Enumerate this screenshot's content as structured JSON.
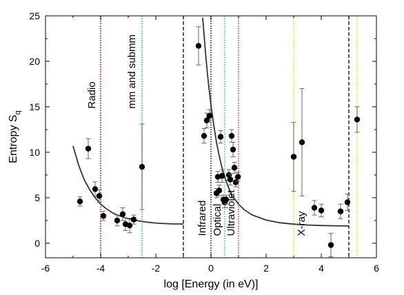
{
  "chart_data": {
    "type": "scatter",
    "title": "",
    "xlabel": "log [Energy (in eV)]",
    "ylabel_main": "Entropy S",
    "ylabel_sub": "q",
    "xlim": [
      -6,
      6
    ],
    "ylim": [
      -1.6,
      25
    ],
    "x_ticks": [
      -6,
      -4,
      -2,
      0,
      2,
      4,
      6
    ],
    "x_tick_labels": [
      "-6",
      "-4",
      "-2",
      "0",
      "2",
      "4",
      "6"
    ],
    "y_ticks": [
      0,
      5,
      10,
      15,
      20,
      25
    ],
    "y_tick_labels": [
      "0",
      "5",
      "10",
      "15",
      "20",
      "25"
    ],
    "grid": false,
    "legend": "none",
    "vertical_lines": [
      {
        "x": -4.0,
        "color": "#d40000",
        "style": "dotted"
      },
      {
        "x": -2.5,
        "color": "#22cc22",
        "style": "dotted"
      },
      {
        "x": -1.0,
        "color": "#000000",
        "style": "dashed"
      },
      {
        "x": 0.0,
        "color": "#0000cc",
        "style": "dotted"
      },
      {
        "x": 0.5,
        "color": "#22cccc",
        "style": "dotted"
      },
      {
        "x": 1.0,
        "color": "#cc22cc",
        "style": "dotted"
      },
      {
        "x": 3.0,
        "color": "#e6e600",
        "style": "dotted"
      },
      {
        "x": 5.0,
        "color": "#000000",
        "style": "dashed"
      },
      {
        "x": 5.3,
        "color": "#e6e600",
        "style": "dotted"
      }
    ],
    "region_labels": [
      {
        "text": "Radio",
        "x": -4.2,
        "y": 14.8
      },
      {
        "text": "mm and submm",
        "x": -2.75,
        "y": 14.8
      },
      {
        "text": "Infrared",
        "x": -0.2,
        "y": 0.8
      },
      {
        "text": "Optical",
        "x": 0.35,
        "y": 0.8
      },
      {
        "text": "Ultraviolet",
        "x": 0.85,
        "y": 0.8
      },
      {
        "text": "X-ray",
        "x": 3.4,
        "y": 0.8
      }
    ],
    "fit_curves": [
      {
        "x": [
          -5.0,
          -4.8,
          -4.6,
          -4.4,
          -4.2,
          -4.0,
          -3.8,
          -3.6,
          -3.4,
          -3.2,
          -3.0,
          -2.8,
          -2.6,
          -2.4,
          -2.2,
          -2.0,
          -1.8,
          -1.6,
          -1.4,
          -1.2,
          -1.0
        ],
        "y": [
          10.7,
          8.6,
          7.0,
          5.9,
          5.0,
          4.3,
          3.8,
          3.4,
          3.1,
          2.9,
          2.7,
          2.55,
          2.45,
          2.35,
          2.28,
          2.22,
          2.18,
          2.15,
          2.13,
          2.12,
          2.11
        ]
      },
      {
        "x": [
          -0.3,
          -0.2,
          -0.1,
          0.0,
          0.1,
          0.2,
          0.3,
          0.4,
          0.5,
          0.6,
          0.7,
          0.8,
          1.0,
          1.2,
          1.5,
          2.0,
          2.5,
          3.0,
          3.5,
          4.0,
          4.5,
          5.0
        ],
        "y": [
          24.8,
          21.0,
          17.8,
          15.2,
          13.0,
          11.1,
          9.6,
          8.3,
          7.3,
          6.4,
          5.7,
          5.1,
          4.3,
          3.7,
          3.1,
          2.55,
          2.25,
          2.1,
          2.0,
          1.95,
          1.92,
          1.9
        ]
      }
    ],
    "points": [
      {
        "x": -4.75,
        "y": 4.6,
        "err": 0.5
      },
      {
        "x": -4.45,
        "y": 10.4,
        "err": 1.1
      },
      {
        "x": -4.2,
        "y": 5.95,
        "err": 0.8
      },
      {
        "x": -4.05,
        "y": 5.2,
        "err": 0.7
      },
      {
        "x": -3.9,
        "y": 3.0,
        "err": 0.5
      },
      {
        "x": -3.4,
        "y": 2.5,
        "err": 0.6
      },
      {
        "x": -3.2,
        "y": 3.2,
        "err": 0.7
      },
      {
        "x": -3.1,
        "y": 2.1,
        "err": 0.7
      },
      {
        "x": -2.95,
        "y": 1.95,
        "err": 0.8
      },
      {
        "x": -2.8,
        "y": 2.6,
        "err": 0.5
      },
      {
        "x": -2.5,
        "y": 8.4,
        "err": 4.7
      },
      {
        "x": -0.45,
        "y": 21.7,
        "err": 2.1
      },
      {
        "x": -0.25,
        "y": 11.8,
        "err": 0.8
      },
      {
        "x": -0.15,
        "y": 13.5,
        "err": 0.8
      },
      {
        "x": -0.05,
        "y": 14.0,
        "err": 0.7
      },
      {
        "x": 0.2,
        "y": 5.5,
        "err": 0.5
      },
      {
        "x": 0.25,
        "y": 7.3,
        "err": 0.6
      },
      {
        "x": 0.3,
        "y": 5.8,
        "err": 0.6
      },
      {
        "x": 0.35,
        "y": 11.7,
        "err": 0.7
      },
      {
        "x": 0.4,
        "y": 7.4,
        "err": 0.7
      },
      {
        "x": 0.45,
        "y": 4.8,
        "err": 0.5
      },
      {
        "x": 0.5,
        "y": 4.5,
        "err": 0.6
      },
      {
        "x": 0.55,
        "y": 4.8,
        "err": 0.5
      },
      {
        "x": 0.65,
        "y": 7.5,
        "err": 0.6
      },
      {
        "x": 0.7,
        "y": 7.0,
        "err": 0.6
      },
      {
        "x": 0.75,
        "y": 11.8,
        "err": 0.7
      },
      {
        "x": 0.8,
        "y": 10.3,
        "err": 0.8
      },
      {
        "x": 0.85,
        "y": 8.3,
        "err": 0.6
      },
      {
        "x": 0.9,
        "y": 6.7,
        "err": 0.5
      },
      {
        "x": 0.98,
        "y": 7.3,
        "err": 0.5
      },
      {
        "x": 3.0,
        "y": 9.5,
        "err": 3.8
      },
      {
        "x": 3.3,
        "y": 11.1,
        "err": 5.9
      },
      {
        "x": 3.75,
        "y": 3.9,
        "err": 0.8
      },
      {
        "x": 4.0,
        "y": 3.6,
        "err": 0.7
      },
      {
        "x": 4.35,
        "y": -0.2,
        "err": 1.3
      },
      {
        "x": 4.7,
        "y": 3.5,
        "err": 0.8
      },
      {
        "x": 4.95,
        "y": 4.5,
        "err": 0.9
      },
      {
        "x": 5.3,
        "y": 13.6,
        "err": 1.4
      }
    ]
  }
}
